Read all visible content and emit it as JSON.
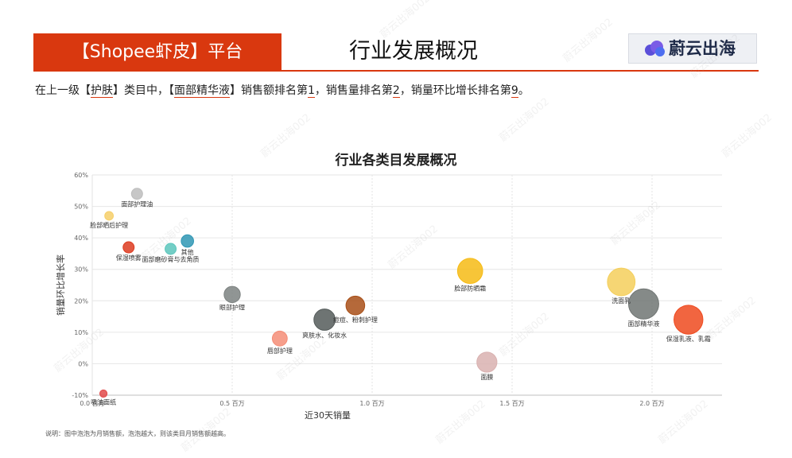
{
  "header": {
    "platform_label": "【Shopee虾皮】平台",
    "title": "行业发展概况",
    "logo_text": "蔚云出海"
  },
  "summary": {
    "p1": "在上一级【",
    "cat": "护肤",
    "p2": "】类目中，【",
    "sub": "面部精华液",
    "p3": "】销售额排名第",
    "r1": "1",
    "p4": "，销售量排名第",
    "r2": "2",
    "p5": "，销量环比增长排名第",
    "r3": "9",
    "p6": "。"
  },
  "footnote": "说明：图中泡泡为月销售额，泡泡越大，则该类目月销售额越高。",
  "watermark": "蔚云出海002",
  "chart_data": {
    "type": "scatter",
    "bubble": true,
    "title": "行业各类目发展概况",
    "xlabel": "近30天销量",
    "ylabel": "销量环比增长率",
    "xlim": [
      0,
      2.25
    ],
    "ylim": [
      -10,
      60
    ],
    "x_ticks": [
      0,
      0.5,
      1.0,
      1.5,
      2.0
    ],
    "x_tick_labels": [
      "0.0 百万",
      "0.5 百万",
      "1.0 百万",
      "1.5 百万",
      "2.0 百万"
    ],
    "y_ticks": [
      -10,
      0,
      10,
      20,
      30,
      40,
      50,
      60
    ],
    "y_tick_labels": [
      "-10%",
      "0%",
      "10%",
      "20%",
      "30%",
      "40%",
      "50%",
      "60%"
    ],
    "grid": true,
    "points": [
      {
        "label": "面部护理油",
        "x": 0.16,
        "y": 54,
        "size": 5,
        "color": "#bdbdbd"
      },
      {
        "label": "脸部晒后护理",
        "x": 0.06,
        "y": 47,
        "size": 3,
        "color": "#f6cf6a"
      },
      {
        "label": "其他",
        "x": 0.34,
        "y": 39,
        "size": 6,
        "color": "#2f96b4"
      },
      {
        "label": "面部磨砂膏与去角质",
        "x": 0.28,
        "y": 36.5,
        "size": 5,
        "color": "#5cc6bc"
      },
      {
        "label": "保湿喷雾",
        "x": 0.13,
        "y": 37,
        "size": 5,
        "color": "#dd3b20"
      },
      {
        "label": "眼部护理",
        "x": 0.5,
        "y": 22,
        "size": 9,
        "color": "#7d8281"
      },
      {
        "label": "唇部护理",
        "x": 0.67,
        "y": 8,
        "size": 8,
        "color": "#f48d77"
      },
      {
        "label": "爽肤水、化妆水",
        "x": 0.83,
        "y": 14,
        "size": 13,
        "color": "#555c5b"
      },
      {
        "label": "痘痘、粉刺护理",
        "x": 0.94,
        "y": 18.5,
        "size": 11,
        "color": "#a84f17"
      },
      {
        "label": "脸部防晒霜",
        "x": 1.35,
        "y": 29.5,
        "size": 16,
        "color": "#f6bb15"
      },
      {
        "label": "面膜",
        "x": 1.41,
        "y": 0.5,
        "size": 12,
        "color": "#d9b1b0"
      },
      {
        "label": "洗面乳",
        "x": 1.89,
        "y": 26,
        "size": 18,
        "color": "#f4cf5c"
      },
      {
        "label": "面部精华液",
        "x": 1.97,
        "y": 19,
        "size": 20,
        "color": "#707573"
      },
      {
        "label": "保湿乳液、乳霜",
        "x": 2.13,
        "y": 14,
        "size": 19,
        "color": "#ef4a1f"
      },
      {
        "label": "吸油面纸",
        "x": 0.04,
        "y": -9.5,
        "size": 2,
        "color": "#e24a4a"
      }
    ]
  }
}
